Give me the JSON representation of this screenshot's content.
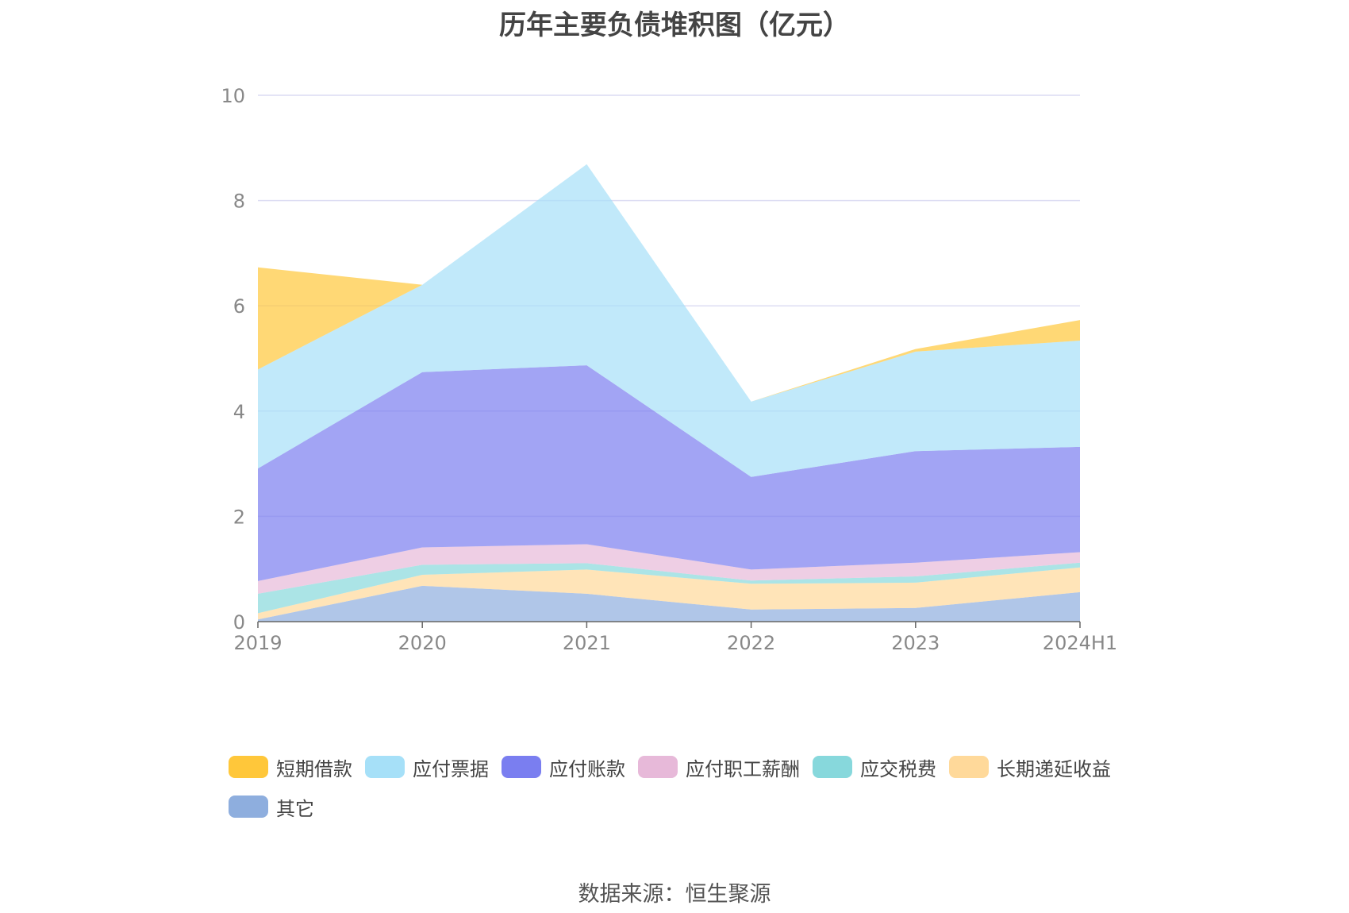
{
  "chart_data": {
    "type": "area",
    "title": "历年主要负债堆积图（亿元）",
    "categories": [
      "2019",
      "2020",
      "2021",
      "2022",
      "2023",
      "2024H1"
    ],
    "ylim": [
      0,
      10
    ],
    "yticks": [
      "0",
      "2",
      "4",
      "6",
      "8",
      "10"
    ],
    "grid": true,
    "legend_position": "bottom",
    "series": [
      {
        "name": "其它",
        "color": "#8eaede",
        "values": [
          0.04,
          0.68,
          0.53,
          0.23,
          0.26,
          0.56
        ]
      },
      {
        "name": "长期递延收益",
        "color": "#ffd99a",
        "values": [
          0.12,
          0.21,
          0.46,
          0.49,
          0.48,
          0.47
        ]
      },
      {
        "name": "应交税费",
        "color": "#87d8dc",
        "values": [
          0.37,
          0.19,
          0.12,
          0.06,
          0.12,
          0.09
        ]
      },
      {
        "name": "应付职工薪酬",
        "color": "#e7b9d9",
        "values": [
          0.24,
          0.33,
          0.36,
          0.21,
          0.26,
          0.2
        ]
      },
      {
        "name": "应付账款",
        "color": "#7a7ef0",
        "values": [
          2.14,
          3.33,
          3.4,
          1.76,
          2.12,
          2.0
        ]
      },
      {
        "name": "应付票据",
        "color": "#a6e0f8",
        "values": [
          1.88,
          1.66,
          3.82,
          1.43,
          1.89,
          2.02
        ]
      },
      {
        "name": "短期借款",
        "color": "#ffc73a",
        "values": [
          1.94,
          0.0,
          0.0,
          0.0,
          0.05,
          0.39
        ]
      }
    ]
  },
  "legend": {
    "order": [
      "短期借款",
      "应付票据",
      "应付账款",
      "应付职工薪酬",
      "应交税费",
      "长期递延收益",
      "其它"
    ]
  },
  "source": "数据来源：恒生聚源"
}
